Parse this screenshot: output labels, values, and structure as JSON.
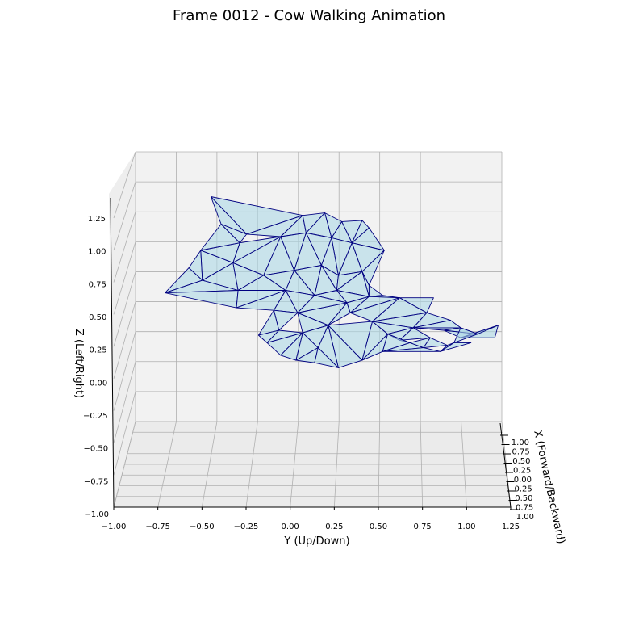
{
  "chart_data": {
    "type": "mesh3d",
    "title": "Frame 0012 - Cow Walking Animation",
    "xlabel": "X (Forward/Backward)",
    "ylabel": "Y (Up/Down)",
    "zlabel": "Z (Left/Right)",
    "y_ticks": [
      "−1.00",
      "−0.75",
      "−0.50",
      "−0.25",
      "0.00",
      "0.25",
      "0.50",
      "0.75",
      "1.00",
      "1.25"
    ],
    "z_ticks": [
      "−1.00",
      "−0.75",
      "−0.50",
      "−0.25",
      "0.00",
      "0.25",
      "0.50",
      "0.75",
      "1.00",
      "1.25"
    ],
    "x_ticks": [
      "1.00",
      "0.75",
      "0.50",
      "0.25",
      "0.00",
      "0.25",
      "0.50",
      "0.75",
      "1.00"
    ],
    "y_range": [
      -1.0,
      1.25
    ],
    "z_range": [
      -1.0,
      1.25
    ],
    "x_range": [
      -1.0,
      1.0
    ],
    "grid": true,
    "face_color": "#add8e6",
    "edge_color": "#000080",
    "pane_color": "#f2f2f2",
    "mesh": {
      "vertices": [
        [
          -0.49,
          1.15
        ],
        [
          -0.55,
          0.72
        ],
        [
          -0.43,
          0.93
        ],
        [
          -0.14,
          0.92
        ],
        [
          0.05,
          1.0
        ],
        [
          0.18,
          1.02
        ],
        [
          0.28,
          0.95
        ],
        [
          0.4,
          0.96
        ],
        [
          0.44,
          0.9
        ],
        [
          0.53,
          0.72
        ],
        [
          -0.76,
          0.38
        ],
        [
          -0.62,
          0.58
        ],
        [
          -0.54,
          0.48
        ],
        [
          -0.36,
          0.62
        ],
        [
          -0.32,
          0.78
        ],
        [
          -0.28,
          0.85
        ],
        [
          -0.08,
          0.83
        ],
        [
          0.07,
          0.86
        ],
        [
          0.22,
          0.82
        ],
        [
          0.34,
          0.78
        ],
        [
          -0.33,
          0.4
        ],
        [
          -0.18,
          0.52
        ],
        [
          0.0,
          0.56
        ],
        [
          0.16,
          0.6
        ],
        [
          0.26,
          0.52
        ],
        [
          0.4,
          0.55
        ],
        [
          0.44,
          0.44
        ],
        [
          -0.34,
          0.26
        ],
        [
          -0.12,
          0.24
        ],
        [
          0.02,
          0.22
        ],
        [
          -0.05,
          0.4
        ],
        [
          0.12,
          0.36
        ],
        [
          0.25,
          0.4
        ],
        [
          0.31,
          0.3
        ],
        [
          0.44,
          0.35
        ],
        [
          0.52,
          0.36
        ],
        [
          0.62,
          0.34
        ],
        [
          0.82,
          0.34
        ],
        [
          0.88,
          0.08
        ],
        [
          0.98,
          0.02
        ],
        [
          1.18,
          0.02
        ],
        [
          1.2,
          0.12
        ],
        [
          1.08,
          0.05
        ],
        [
          0.98,
          0.1
        ],
        [
          0.92,
          0.16
        ],
        [
          0.78,
          0.22
        ],
        [
          0.7,
          0.1
        ],
        [
          0.62,
          0.0
        ],
        [
          0.52,
          -0.09
        ],
        [
          0.4,
          -0.16
        ],
        [
          0.26,
          -0.22
        ],
        [
          0.12,
          -0.18
        ],
        [
          0.01,
          -0.16
        ],
        [
          -0.08,
          -0.12
        ],
        [
          -0.16,
          -0.02
        ],
        [
          -0.21,
          0.04
        ],
        [
          -0.09,
          0.08
        ],
        [
          0.05,
          0.06
        ],
        [
          0.2,
          0.12
        ],
        [
          0.33,
          0.22
        ],
        [
          0.46,
          0.15
        ],
        [
          0.55,
          0.05
        ],
        [
          0.68,
          -0.02
        ],
        [
          0.76,
          -0.06
        ],
        [
          0.86,
          -0.09
        ],
        [
          0.94,
          -0.02
        ],
        [
          1.04,
          -0.02
        ],
        [
          0.8,
          0.02
        ],
        [
          0.9,
          -0.04
        ],
        [
          0.14,
          -0.06
        ]
      ],
      "faces": [
        [
          0,
          2,
          15
        ],
        [
          0,
          15,
          4
        ],
        [
          15,
          16,
          4
        ],
        [
          4,
          16,
          17
        ],
        [
          4,
          17,
          5
        ],
        [
          5,
          17,
          18
        ],
        [
          5,
          18,
          6
        ],
        [
          6,
          18,
          19
        ],
        [
          6,
          19,
          7
        ],
        [
          7,
          19,
          8
        ],
        [
          8,
          19,
          9
        ],
        [
          2,
          1,
          14
        ],
        [
          2,
          14,
          15
        ],
        [
          1,
          13,
          14
        ],
        [
          14,
          13,
          16
        ],
        [
          16,
          13,
          21
        ],
        [
          16,
          21,
          22
        ],
        [
          16,
          22,
          17
        ],
        [
          17,
          22,
          23
        ],
        [
          17,
          23,
          18
        ],
        [
          18,
          23,
          24
        ],
        [
          18,
          24,
          19
        ],
        [
          19,
          24,
          25
        ],
        [
          19,
          25,
          9
        ],
        [
          9,
          25,
          26
        ],
        [
          10,
          11,
          12
        ],
        [
          11,
          1,
          12
        ],
        [
          1,
          13,
          12
        ],
        [
          12,
          13,
          20
        ],
        [
          12,
          20,
          10
        ],
        [
          10,
          20,
          27
        ],
        [
          20,
          13,
          21
        ],
        [
          20,
          21,
          30
        ],
        [
          21,
          22,
          30
        ],
        [
          22,
          23,
          31
        ],
        [
          22,
          31,
          30
        ],
        [
          23,
          24,
          32
        ],
        [
          23,
          32,
          31
        ],
        [
          24,
          25,
          32
        ],
        [
          25,
          26,
          34
        ],
        [
          25,
          34,
          32
        ],
        [
          32,
          34,
          33
        ],
        [
          26,
          35,
          34
        ],
        [
          20,
          30,
          27
        ],
        [
          27,
          30,
          28
        ],
        [
          30,
          31,
          29
        ],
        [
          30,
          29,
          28
        ],
        [
          31,
          32,
          33
        ],
        [
          31,
          33,
          29
        ],
        [
          28,
          29,
          56
        ],
        [
          28,
          56,
          55
        ],
        [
          55,
          56,
          54
        ],
        [
          56,
          57,
          54
        ],
        [
          57,
          53,
          54
        ],
        [
          29,
          33,
          58
        ],
        [
          29,
          58,
          57
        ],
        [
          33,
          59,
          58
        ],
        [
          33,
          34,
          59
        ],
        [
          34,
          35,
          36
        ],
        [
          34,
          36,
          59
        ],
        [
          59,
          36,
          60
        ],
        [
          36,
          37,
          45
        ],
        [
          36,
          45,
          60
        ],
        [
          60,
          45,
          46
        ],
        [
          45,
          44,
          46
        ],
        [
          44,
          43,
          46
        ],
        [
          43,
          38,
          46
        ],
        [
          38,
          39,
          42
        ],
        [
          38,
          42,
          43
        ],
        [
          39,
          40,
          41
        ],
        [
          39,
          41,
          42
        ],
        [
          60,
          46,
          61
        ],
        [
          46,
          47,
          61
        ],
        [
          46,
          67,
          47
        ],
        [
          67,
          68,
          63
        ],
        [
          67,
          63,
          62
        ],
        [
          62,
          63,
          48
        ],
        [
          61,
          47,
          62
        ],
        [
          61,
          62,
          48
        ],
        [
          48,
          49,
          61
        ],
        [
          49,
          50,
          58
        ],
        [
          58,
          49,
          60
        ],
        [
          60,
          49,
          61
        ],
        [
          58,
          50,
          69
        ],
        [
          58,
          69,
          57
        ],
        [
          57,
          69,
          52
        ],
        [
          69,
          51,
          52
        ],
        [
          50,
          51,
          69
        ],
        [
          52,
          53,
          57
        ],
        [
          63,
          64,
          48
        ],
        [
          64,
          65,
          68
        ],
        [
          65,
          66,
          64
        ],
        [
          43,
          42,
          65
        ]
      ]
    }
  }
}
